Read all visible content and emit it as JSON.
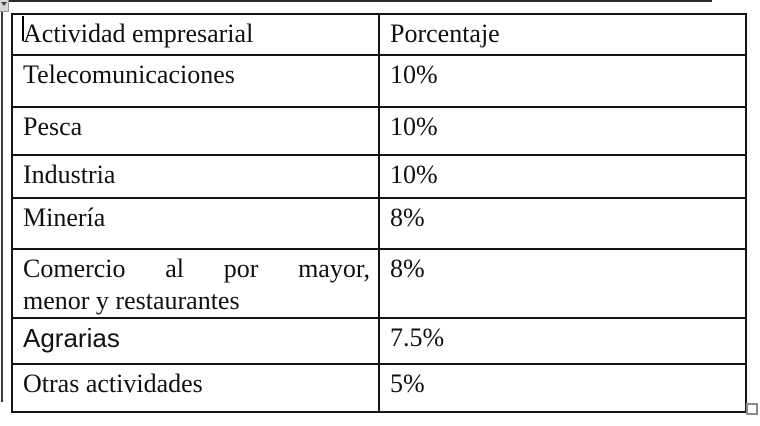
{
  "page": {
    "background_color": "#ffffff",
    "table_border_color": "#141414",
    "text_color": "#101010"
  },
  "decorations": {
    "top_edge_line": "horizontal-rule",
    "left_edge_line": "vertical-rule",
    "corner_widget": "clipped-dropdown-button",
    "text_cursor": "insertion-caret",
    "resize_handle": "table-resize-handle"
  },
  "table": {
    "header": {
      "activity": "Actividad empresarial",
      "percentage": "Porcentaje"
    },
    "rows": [
      {
        "activity": "Telecomunicaciones",
        "percentage": "10%"
      },
      {
        "activity": "Pesca",
        "percentage": "10%"
      },
      {
        "activity": "Industria",
        "percentage": "10%"
      },
      {
        "activity": "Minería",
        "percentage": "8%"
      },
      {
        "activity": "Comercio al por mayor, menor y restaurantes",
        "percentage": "8%",
        "wrap": {
          "line1_words": [
            "Comercio",
            "al",
            "por",
            "mayor,"
          ],
          "line2": "menor y restaurantes"
        }
      },
      {
        "activity": "Agrarias",
        "percentage": "7.5%",
        "font": "sans"
      },
      {
        "activity": "Otras actividades",
        "percentage": "5%"
      }
    ]
  }
}
